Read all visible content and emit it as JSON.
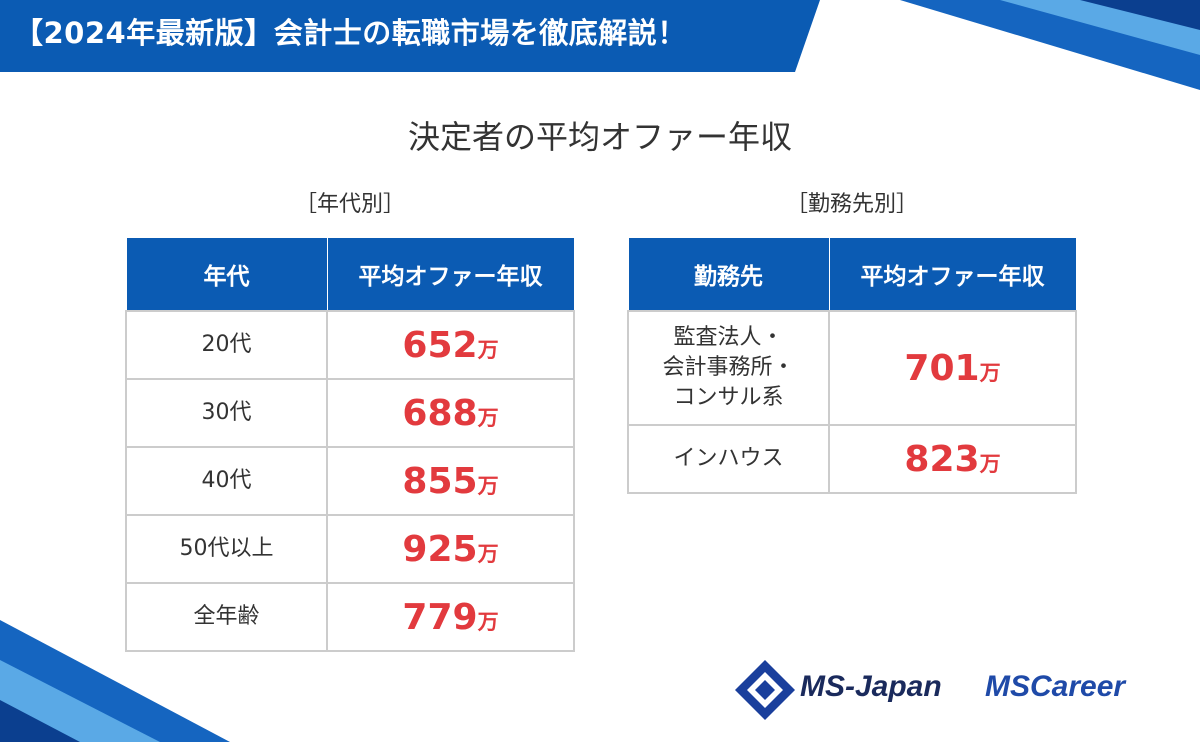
{
  "header": {
    "title": "【2024年最新版】会計士の転職市場を徹底解説！"
  },
  "title": "決定者の平均オファー年収",
  "tables": [
    {
      "caption": "［年代別］",
      "headers": [
        "年代",
        "平均オファー年収"
      ],
      "rows": [
        [
          "20代",
          "652",
          "万"
        ],
        [
          "30代",
          "688",
          "万"
        ],
        [
          "40代",
          "855",
          "万"
        ],
        [
          "50代以上",
          "925",
          "万"
        ],
        [
          "全年齢",
          "779",
          "万"
        ]
      ]
    },
    {
      "caption": "［勤務先別］",
      "headers": [
        "勤務先",
        "平均オファー年収"
      ],
      "rows": [
        [
          "監査法人・\n会計事務所・\nコンサル系",
          "701",
          "万"
        ],
        [
          "インハウス",
          "823",
          "万"
        ]
      ]
    }
  ],
  "logos": [
    "MS-Japan",
    "MSCareer"
  ]
}
